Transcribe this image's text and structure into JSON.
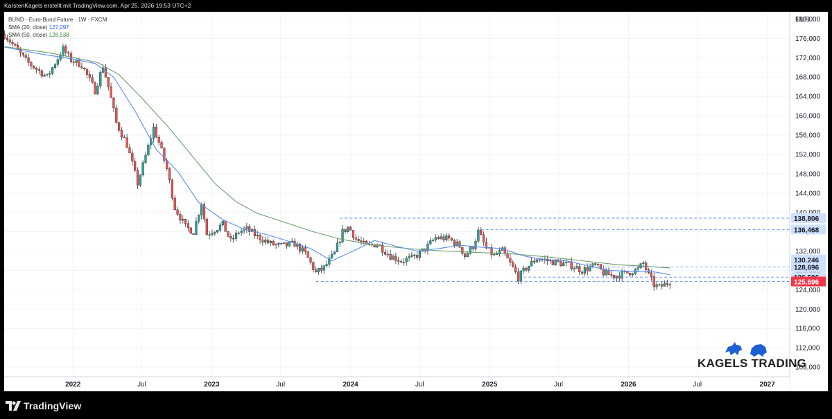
{
  "header": {
    "attribution": "KarstenKagels erstellt mit TradingView.com, Apr 25, 2026 19:53 UTC+2"
  },
  "legend": {
    "title": "BUND · Euro-Bund Future · 1W · FXCM",
    "sma20_label": "SMA (20, close)",
    "sma20_value": "127,097",
    "sma50_label": "SMA (50, close)",
    "sma50_value": "128,538"
  },
  "footer": {
    "brand": "TradingView"
  },
  "watermark": {
    "text": "KAGELS TRADING"
  },
  "colors": {
    "up": "#26a69a",
    "down": "#ef5350",
    "sma20": "#5b8def",
    "sma50": "#6b9e6b",
    "level": "#5b8def",
    "current": "#f23645"
  },
  "chart_data": {
    "type": "candlestick",
    "symbol": "BUND",
    "currency": "EUR",
    "y_range": [
      106000,
      181500
    ],
    "y_ticks": [
      108000,
      112000,
      116000,
      120000,
      124000,
      128000,
      132000,
      136000,
      140000,
      144000,
      148000,
      152000,
      156000,
      160000,
      164000,
      168000,
      172000,
      176000,
      180000
    ],
    "x_labels": [
      {
        "label": "2022",
        "date": "2022-01-01",
        "bold": true
      },
      {
        "label": "Jul",
        "date": "2022-07-01",
        "bold": false
      },
      {
        "label": "2023",
        "date": "2023-01-01",
        "bold": true
      },
      {
        "label": "Jul",
        "date": "2023-07-01",
        "bold": false
      },
      {
        "label": "2024",
        "date": "2024-01-01",
        "bold": true
      },
      {
        "label": "Jul",
        "date": "2024-07-01",
        "bold": false
      },
      {
        "label": "2025",
        "date": "2025-01-01",
        "bold": true
      },
      {
        "label": "Jul",
        "date": "2025-07-01",
        "bold": false
      },
      {
        "label": "2026",
        "date": "2026-01-01",
        "bold": true
      },
      {
        "label": "Jul",
        "date": "2026-07-01",
        "bold": false
      },
      {
        "label": "2027",
        "date": "2027-01-01",
        "bold": true
      }
    ],
    "x_range": [
      "2021-07-04",
      "2027-03-01"
    ],
    "price_path": [
      [
        "2021-07-05",
        176.8
      ],
      [
        "2021-09-01",
        171.2
      ],
      [
        "2021-10-25",
        168.0
      ],
      [
        "2021-12-06",
        173.8
      ],
      [
        "2021-12-27",
        171.5
      ],
      [
        "2022-01-24",
        170.5
      ],
      [
        "2022-02-28",
        165.2
      ],
      [
        "2022-03-21",
        170.3
      ],
      [
        "2022-04-04",
        166.0
      ],
      [
        "2022-04-25",
        158.5
      ],
      [
        "2022-05-23",
        154.0
      ],
      [
        "2022-06-20",
        146.0
      ],
      [
        "2022-07-05",
        150.0
      ],
      [
        "2022-08-01",
        157.5
      ],
      [
        "2022-08-15",
        154.5
      ],
      [
        "2022-09-05",
        149.0
      ],
      [
        "2022-09-26",
        141.0
      ],
      [
        "2022-10-24",
        137.0
      ],
      [
        "2022-11-14",
        136.0
      ],
      [
        "2022-12-05",
        142.0
      ],
      [
        "2022-12-19",
        135.5
      ],
      [
        "2023-01-09",
        136.5
      ],
      [
        "2023-01-30",
        137.5
      ],
      [
        "2023-02-20",
        134.0
      ],
      [
        "2023-03-13",
        136.0
      ],
      [
        "2023-04-03",
        136.5
      ],
      [
        "2023-05-01",
        135.0
      ],
      [
        "2023-06-05",
        133.5
      ],
      [
        "2023-07-03",
        133.0
      ],
      [
        "2023-08-07",
        133.5
      ],
      [
        "2023-09-04",
        131.5
      ],
      [
        "2023-10-02",
        127.5
      ],
      [
        "2023-10-23",
        128.5
      ],
      [
        "2023-11-20",
        131.5
      ],
      [
        "2023-12-11",
        136.0
      ],
      [
        "2023-12-27",
        137.0
      ],
      [
        "2024-01-15",
        134.5
      ],
      [
        "2024-02-12",
        133.0
      ],
      [
        "2024-03-11",
        133.5
      ],
      [
        "2024-04-15",
        131.0
      ],
      [
        "2024-05-13",
        130.0
      ],
      [
        "2024-06-10",
        130.5
      ],
      [
        "2024-07-01",
        131.5
      ],
      [
        "2024-07-22",
        133.0
      ],
      [
        "2024-08-12",
        134.8
      ],
      [
        "2024-09-16",
        134.5
      ],
      [
        "2024-10-14",
        133.0
      ],
      [
        "2024-10-28",
        131.0
      ],
      [
        "2024-11-18",
        133.0
      ],
      [
        "2024-12-02",
        136.0
      ],
      [
        "2024-12-23",
        132.5
      ],
      [
        "2025-01-13",
        131.0
      ],
      [
        "2025-02-03",
        132.0
      ],
      [
        "2025-03-03",
        128.5
      ],
      [
        "2025-03-17",
        126.5
      ],
      [
        "2025-04-07",
        128.5
      ],
      [
        "2025-05-05",
        130.5
      ],
      [
        "2025-06-02",
        130.0
      ],
      [
        "2025-07-07",
        129.5
      ],
      [
        "2025-08-04",
        129.0
      ],
      [
        "2025-09-01",
        128.0
      ],
      [
        "2025-10-06",
        129.0
      ],
      [
        "2025-10-27",
        127.5
      ],
      [
        "2025-11-24",
        126.8
      ],
      [
        "2025-12-29",
        127.5
      ],
      [
        "2026-01-26",
        128.2
      ],
      [
        "2026-02-09",
        129.5
      ],
      [
        "2026-02-23",
        127.0
      ],
      [
        "2026-03-09",
        125.0
      ],
      [
        "2026-03-23",
        124.5
      ],
      [
        "2026-04-20",
        125.7
      ]
    ],
    "sma20": [
      [
        "2021-07-05",
        174.2
      ],
      [
        "2021-10-04",
        172.8
      ],
      [
        "2021-12-27",
        171.8
      ],
      [
        "2022-02-28",
        170.8
      ],
      [
        "2022-04-18",
        168.0
      ],
      [
        "2022-06-13",
        161.0
      ],
      [
        "2022-08-08",
        153.0
      ],
      [
        "2022-10-03",
        148.5
      ],
      [
        "2022-11-28",
        142.0
      ],
      [
        "2023-01-30",
        138.5
      ],
      [
        "2023-03-27",
        136.5
      ],
      [
        "2023-05-22",
        135.5
      ],
      [
        "2023-07-24",
        134.0
      ],
      [
        "2023-09-18",
        132.5
      ],
      [
        "2023-11-13",
        130.0
      ],
      [
        "2024-01-08",
        132.0
      ],
      [
        "2024-03-04",
        134.2
      ],
      [
        "2024-04-29",
        133.0
      ],
      [
        "2024-06-24",
        132.0
      ],
      [
        "2024-08-19",
        132.5
      ],
      [
        "2024-10-14",
        133.2
      ],
      [
        "2024-12-09",
        132.8
      ],
      [
        "2025-02-03",
        132.5
      ],
      [
        "2025-03-31",
        131.0
      ],
      [
        "2025-05-26",
        130.2
      ],
      [
        "2025-07-21",
        130.0
      ],
      [
        "2025-09-15",
        129.0
      ],
      [
        "2025-11-10",
        128.0
      ],
      [
        "2026-01-05",
        127.8
      ],
      [
        "2026-03-02",
        127.8
      ],
      [
        "2026-04-20",
        127.1
      ]
    ],
    "sma50": [
      [
        "2021-07-05",
        174.3
      ],
      [
        "2021-11-01",
        173.0
      ],
      [
        "2022-03-07",
        171.0
      ],
      [
        "2022-05-02",
        168.5
      ],
      [
        "2022-06-27",
        164.0
      ],
      [
        "2022-09-05",
        158.0
      ],
      [
        "2022-11-07",
        152.0
      ],
      [
        "2023-01-09",
        146.0
      ],
      [
        "2023-03-06",
        142.2
      ],
      [
        "2023-05-01",
        139.8
      ],
      [
        "2023-07-10",
        138.0
      ],
      [
        "2023-09-25",
        136.0
      ],
      [
        "2023-12-04",
        134.5
      ],
      [
        "2024-03-04",
        133.2
      ],
      [
        "2024-06-03",
        132.5
      ],
      [
        "2024-09-02",
        132.0
      ],
      [
        "2024-12-02",
        131.7
      ],
      [
        "2025-03-03",
        131.4
      ],
      [
        "2025-06-02",
        130.8
      ],
      [
        "2025-09-01",
        130.0
      ],
      [
        "2025-12-01",
        129.2
      ],
      [
        "2026-02-02",
        128.9
      ],
      [
        "2026-04-20",
        128.5
      ]
    ],
    "levels": [
      {
        "label": "138,806",
        "value": 138806,
        "start": "2023-12-04",
        "highlight": false
      },
      {
        "label": "136,468",
        "value": 136468,
        "start": "2024-12-09",
        "highlight": false
      },
      {
        "label": "130,246",
        "value": 130246,
        "start": null,
        "highlight": false
      },
      {
        "label": "128,696",
        "value": 128696,
        "start": "2025-10-13",
        "highlight": false
      },
      {
        "label": "126,596",
        "value": 126596,
        "start": "2025-03-31",
        "highlight": false
      },
      {
        "label": "125,696",
        "value": 125696,
        "start": "2023-10-02",
        "highlight": true
      }
    ]
  }
}
